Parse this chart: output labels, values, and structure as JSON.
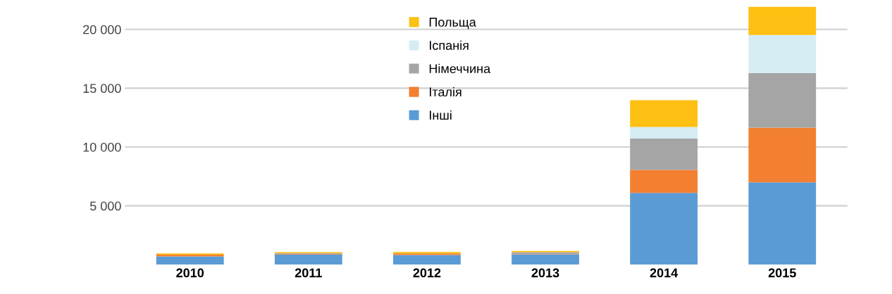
{
  "chart_data": {
    "type": "bar",
    "stacked": true,
    "categories": [
      "2010",
      "2011",
      "2012",
      "2013",
      "2014",
      "2015"
    ],
    "series": [
      {
        "name": "Інші",
        "color": "#5b9bd5",
        "values": [
          700,
          870,
          820,
          860,
          6100,
          7000
        ]
      },
      {
        "name": "Італія",
        "color": "#f28030",
        "values": [
          150,
          60,
          130,
          40,
          1950,
          4650
        ]
      },
      {
        "name": "Німеччина",
        "color": "#a5a5a5",
        "values": [
          0,
          40,
          null,
          160,
          2670,
          4630
        ]
      },
      {
        "name": "Іспанія",
        "color": "#d5ecf3",
        "values": [
          0,
          null,
          null,
          null,
          990,
          3240
        ]
      },
      {
        "name": "Польща",
        "color": "#fdc013",
        "values": [
          100,
          90,
          130,
          100,
          2270,
          2400
        ]
      }
    ],
    "ylim": [
      0,
      22000
    ],
    "yticks": [
      {
        "value": 5000,
        "label": "5 000"
      },
      {
        "value": 10000,
        "label": "10 000"
      },
      {
        "value": 15000,
        "label": "15 000"
      },
      {
        "value": 20000,
        "label": "20 000"
      }
    ],
    "grid": "y",
    "legend": "top"
  }
}
